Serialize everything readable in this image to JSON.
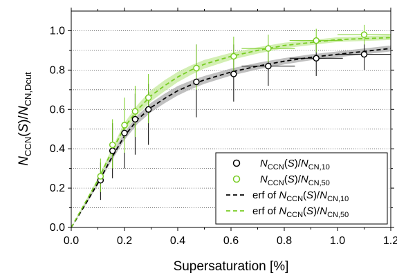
{
  "chart_data": {
    "type": "scatter",
    "xlabel": "Supersaturation [%]",
    "ylabel": "N_CCN(S)/N_CN,Dcut",
    "xlim": [
      0.0,
      1.2
    ],
    "ylim": [
      0.0,
      1.1
    ],
    "x_ticks": [
      "0.0",
      "0.2",
      "0.4",
      "0.6",
      "0.8",
      "1.0",
      "1.2"
    ],
    "y_ticks": [
      "0.0",
      "0.2",
      "0.4",
      "0.6",
      "0.8",
      "1.0"
    ],
    "grid": "horizontal dotted",
    "legend_position": "bottom-right",
    "series": [
      {
        "name": "N_CCN(S)/N_CN,10",
        "kind": "points",
        "marker": "open-circle",
        "color": "#000000",
        "points": [
          {
            "x": 0.11,
            "y": 0.24,
            "y_low": 0.14,
            "y_high": 0.33
          },
          {
            "x": 0.155,
            "y": 0.39,
            "y_low": 0.25,
            "y_high": 0.53
          },
          {
            "x": 0.2,
            "y": 0.48,
            "y_low": 0.3,
            "y_high": 0.64
          },
          {
            "x": 0.24,
            "y": 0.55,
            "y_low": 0.37,
            "y_high": 0.68
          },
          {
            "x": 0.29,
            "y": 0.6,
            "y_low": 0.42,
            "y_high": 0.73
          },
          {
            "x": 0.47,
            "y": 0.74,
            "y_low": 0.56,
            "y_high": 0.93
          },
          {
            "x": 0.61,
            "y": 0.78,
            "y_low": 0.64,
            "y_high": 0.93
          },
          {
            "x": 0.74,
            "y": 0.82,
            "y_low": 0.72,
            "y_high": 0.93,
            "x_low": 0.64,
            "x_high": 0.84
          },
          {
            "x": 0.92,
            "y": 0.86,
            "y_low": 0.77,
            "y_high": 0.96,
            "x_low": 0.82,
            "x_high": 1.02
          },
          {
            "x": 1.1,
            "y": 0.88,
            "y_low": 0.8,
            "y_high": 0.97,
            "x_low": 1.0,
            "x_high": 1.2
          }
        ]
      },
      {
        "name": "N_CCN(S)/N_CN,50",
        "kind": "points",
        "marker": "open-circle",
        "color": "#77cc22",
        "points": [
          {
            "x": 0.11,
            "y": 0.26,
            "y_low": 0.18,
            "y_high": 0.35
          },
          {
            "x": 0.155,
            "y": 0.42,
            "y_low": 0.3,
            "y_high": 0.55
          },
          {
            "x": 0.2,
            "y": 0.52,
            "y_low": 0.38,
            "y_high": 0.66
          },
          {
            "x": 0.24,
            "y": 0.59,
            "y_low": 0.46,
            "y_high": 0.72
          },
          {
            "x": 0.29,
            "y": 0.66,
            "y_low": 0.53,
            "y_high": 0.78
          },
          {
            "x": 0.47,
            "y": 0.81,
            "y_low": 0.7,
            "y_high": 0.93
          },
          {
            "x": 0.61,
            "y": 0.87,
            "y_low": 0.78,
            "y_high": 0.97
          },
          {
            "x": 0.74,
            "y": 0.91,
            "y_low": 0.84,
            "y_high": 0.98,
            "x_low": 0.64,
            "x_high": 0.84
          },
          {
            "x": 0.92,
            "y": 0.95,
            "y_low": 0.89,
            "y_high": 1.01,
            "x_low": 0.82,
            "x_high": 1.02
          },
          {
            "x": 1.1,
            "y": 0.98,
            "y_low": 0.93,
            "y_high": 1.03,
            "x_low": 1.0,
            "x_high": 1.2
          }
        ]
      },
      {
        "name": "erf of N_CCN(S)/N_CN,10",
        "kind": "fit",
        "line_style": "dashed",
        "color": "#000000",
        "band_color": "#b0b0b0",
        "x": [
          0.0,
          0.05,
          0.1,
          0.15,
          0.2,
          0.25,
          0.3,
          0.35,
          0.4,
          0.45,
          0.5,
          0.55,
          0.6,
          0.7,
          0.8,
          0.9,
          1.0,
          1.1,
          1.2
        ],
        "y": [
          0.0,
          0.11,
          0.225,
          0.35,
          0.465,
          0.55,
          0.61,
          0.655,
          0.695,
          0.725,
          0.75,
          0.77,
          0.79,
          0.82,
          0.845,
          0.865,
          0.88,
          0.895,
          0.91
        ],
        "band_halfwidth": [
          0.0,
          0.005,
          0.01,
          0.015,
          0.02,
          0.022,
          0.024,
          0.024,
          0.024,
          0.022,
          0.02,
          0.019,
          0.018,
          0.017,
          0.016,
          0.015,
          0.015,
          0.015,
          0.015
        ]
      },
      {
        "name": "erf of N_CCN(S)/N_CN,50",
        "kind": "fit",
        "line_style": "dashed",
        "color": "#77cc22",
        "band_color": "#c8eba0",
        "x": [
          0.0,
          0.05,
          0.1,
          0.15,
          0.2,
          0.25,
          0.3,
          0.35,
          0.4,
          0.45,
          0.5,
          0.55,
          0.6,
          0.7,
          0.8,
          0.9,
          1.0,
          1.1,
          1.2
        ],
        "y": [
          0.0,
          0.12,
          0.24,
          0.38,
          0.51,
          0.6,
          0.67,
          0.72,
          0.765,
          0.8,
          0.83,
          0.85,
          0.87,
          0.9,
          0.925,
          0.94,
          0.955,
          0.96,
          0.965
        ],
        "band_halfwidth": [
          0.0,
          0.005,
          0.01,
          0.015,
          0.022,
          0.025,
          0.028,
          0.028,
          0.026,
          0.024,
          0.022,
          0.02,
          0.018,
          0.016,
          0.014,
          0.013,
          0.012,
          0.012,
          0.012
        ]
      }
    ]
  }
}
